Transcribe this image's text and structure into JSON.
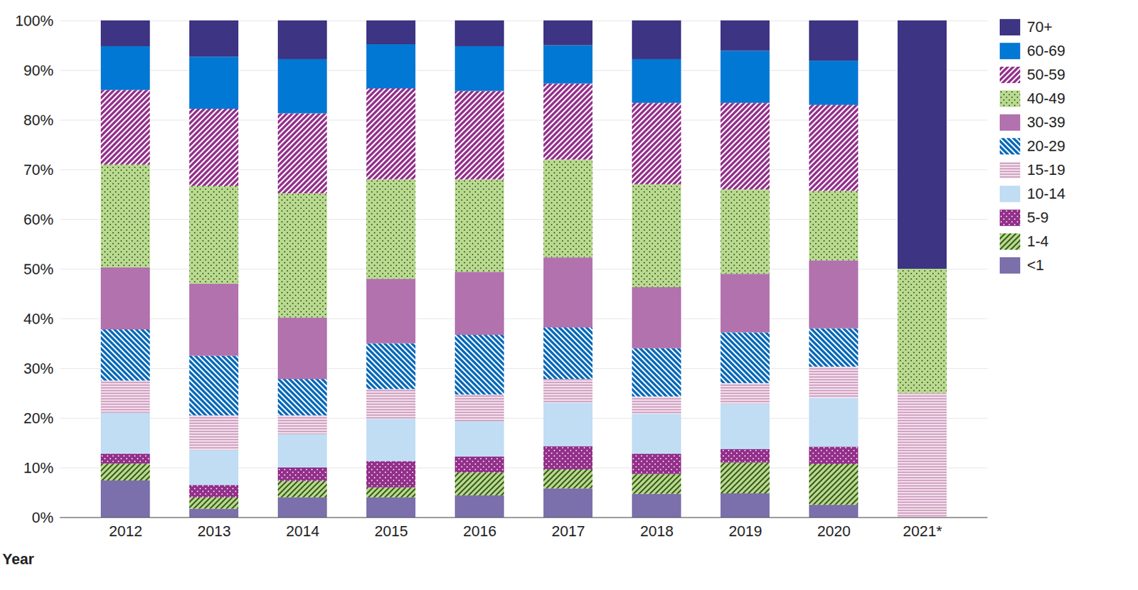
{
  "chart_data": {
    "type": "bar",
    "stacked": true,
    "grid": true,
    "legend": "right",
    "x_label": "Year",
    "categories": [
      "2012",
      "2013",
      "2014",
      "2015",
      "2016",
      "2017",
      "2018",
      "2019",
      "2020",
      "2021*"
    ],
    "ylim": [
      0,
      100
    ],
    "yticks": [
      {
        "value": 0,
        "label": "0%"
      },
      {
        "value": 10,
        "label": "10%"
      },
      {
        "value": 20,
        "label": "20%"
      },
      {
        "value": 30,
        "label": "30%"
      },
      {
        "value": 40,
        "label": "40%"
      },
      {
        "value": 50,
        "label": "50%"
      },
      {
        "value": 60,
        "label": "60%"
      },
      {
        "value": 70,
        "label": "70%"
      },
      {
        "value": 80,
        "label": "80%"
      },
      {
        "value": 90,
        "label": "90%"
      },
      {
        "value": 100,
        "label": "100%"
      }
    ],
    "series": [
      {
        "name": "<1",
        "color": "#7b70ab",
        "values": [
          7.4,
          1.7,
          4.0,
          4.0,
          4.4,
          5.8,
          4.7,
          4.8,
          2.5,
          0
        ]
      },
      {
        "name": "1-4",
        "color": "#b8da8e",
        "values": [
          3.4,
          2.3,
          3.3,
          2.0,
          4.6,
          3.8,
          4.0,
          6.2,
          8.2,
          0
        ]
      },
      {
        "name": "5-9",
        "color": "#93308b",
        "values": [
          2.0,
          2.5,
          2.7,
          5.3,
          3.2,
          4.7,
          4.1,
          2.7,
          3.5,
          0
        ]
      },
      {
        "name": "10-14",
        "color": "#c0ddf4",
        "values": [
          8.2,
          7.0,
          6.7,
          8.5,
          7.1,
          8.7,
          8.0,
          9.1,
          9.8,
          0
        ]
      },
      {
        "name": "15-19",
        "color": "#f3dfec",
        "values": [
          6.5,
          7.0,
          3.8,
          6.0,
          5.4,
          4.8,
          3.5,
          4.2,
          6.3,
          25
        ]
      },
      {
        "name": "20-29",
        "color": "#0068b8",
        "values": [
          10.3,
          12.0,
          7.3,
          9.2,
          12.0,
          10.4,
          9.7,
          10.2,
          7.7,
          0
        ]
      },
      {
        "name": "30-39",
        "color": "#b272ae",
        "values": [
          12.5,
          14.5,
          12.4,
          13.0,
          12.7,
          14.1,
          12.3,
          11.8,
          13.7,
          0
        ]
      },
      {
        "name": "40-49",
        "color": "#b8da8e",
        "values": [
          20.7,
          19.7,
          25.0,
          20.0,
          18.6,
          19.7,
          20.7,
          17.0,
          14.0,
          25
        ]
      },
      {
        "name": "50-59",
        "color": "#93308b",
        "values": [
          15.0,
          15.5,
          16.1,
          18.3,
          17.8,
          15.3,
          16.4,
          17.4,
          17.3,
          0
        ]
      },
      {
        "name": "60-69",
        "color": "#0078d4",
        "values": [
          8.8,
          10.5,
          10.9,
          8.9,
          9.0,
          7.7,
          8.8,
          10.5,
          8.9,
          0
        ]
      },
      {
        "name": "70+",
        "color": "#3d3483",
        "values": [
          5.2,
          7.3,
          7.8,
          4.8,
          5.2,
          5.0,
          7.8,
          6.1,
          8.1,
          50
        ]
      }
    ]
  }
}
